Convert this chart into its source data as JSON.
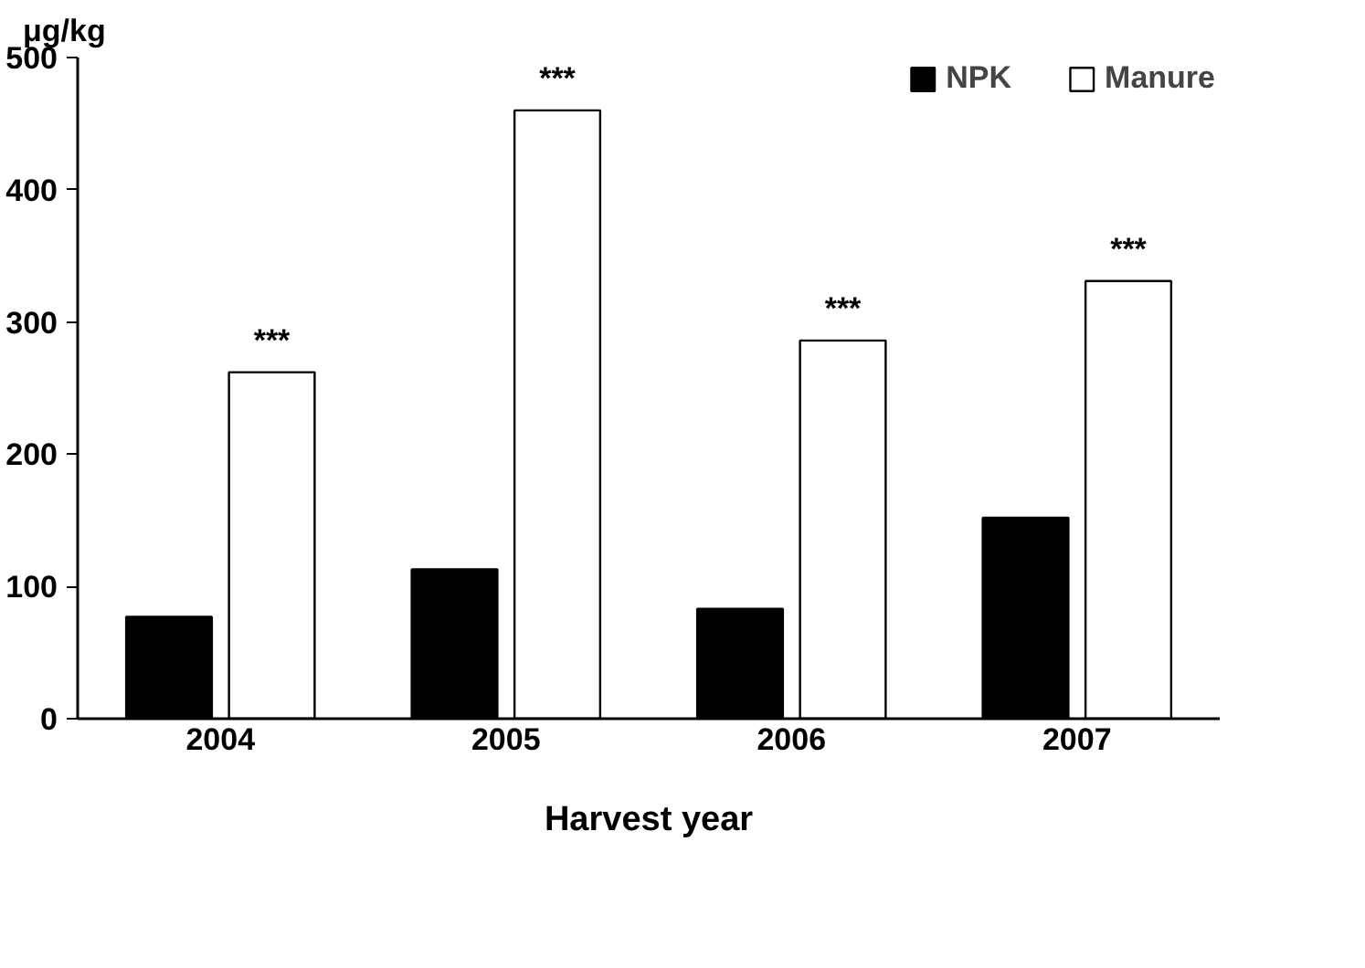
{
  "chart_data": {
    "type": "bar",
    "ylabel": "μg/kg",
    "xlabel": "Harvest year",
    "categories": [
      "2004",
      "2005",
      "2006",
      "2007"
    ],
    "series": [
      {
        "name": "NPK",
        "color": "#000000",
        "values": [
          77,
          113,
          83,
          152
        ]
      },
      {
        "name": "Manure",
        "color": "#ffffff",
        "values": [
          262,
          460,
          286,
          331
        ]
      }
    ],
    "ylim": [
      0,
      500
    ],
    "yticks": [
      0,
      100,
      200,
      300,
      400,
      500
    ],
    "grid": false,
    "legend": "top right",
    "annotations": [
      {
        "text": "***",
        "x": "2004",
        "y": 262
      },
      {
        "text": "***",
        "x": "2005",
        "y": 460
      },
      {
        "text": "***",
        "x": "2006",
        "y": 286
      },
      {
        "text": "***",
        "x": "2007",
        "y": 331
      }
    ]
  }
}
